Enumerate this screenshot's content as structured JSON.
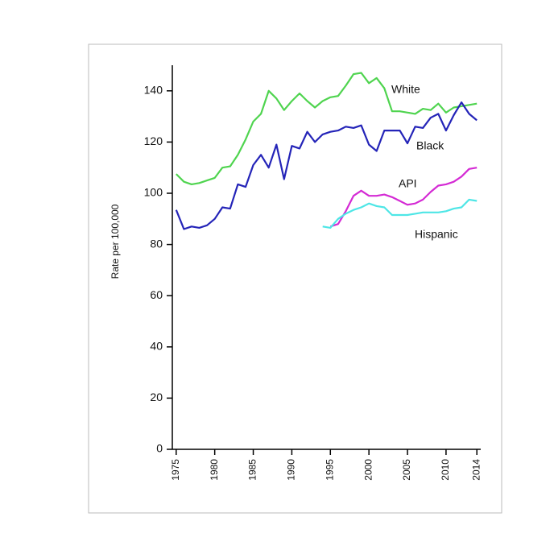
{
  "chart_data": {
    "type": "line",
    "y_label": "Rate per 100,000",
    "x": [
      1975,
      1976,
      1977,
      1978,
      1979,
      1980,
      1981,
      1982,
      1983,
      1984,
      1985,
      1986,
      1987,
      1988,
      1989,
      1990,
      1991,
      1992,
      1993,
      1994,
      1995,
      1996,
      1997,
      1998,
      1999,
      2000,
      2001,
      2002,
      2003,
      2004,
      2005,
      2006,
      2007,
      2008,
      2009,
      2010,
      2011,
      2012,
      2013,
      2014
    ],
    "series": [
      {
        "name": "White",
        "color": "#4fd44f",
        "values": [
          107.5,
          104.5,
          103.5,
          104,
          105,
          106,
          110,
          110.5,
          115,
          121,
          128,
          131,
          140,
          137,
          132.5,
          136,
          139,
          136,
          133.5,
          136,
          137.5,
          138,
          142,
          146.5,
          147,
          143,
          145,
          141,
          132,
          132,
          131.5,
          131,
          133,
          132.5,
          135,
          131.5,
          133.5,
          134,
          134.5,
          135
        ]
      },
      {
        "name": "Black",
        "color": "#2424b8",
        "values": [
          93.5,
          86,
          87,
          86.5,
          87.5,
          90,
          94.5,
          94,
          103.5,
          102.5,
          111,
          115,
          110,
          119,
          105.5,
          118.5,
          117.5,
          124,
          120,
          123,
          124,
          124.5,
          126,
          125.5,
          126.5,
          119,
          116.5,
          124.5,
          124.5,
          124.5,
          119.5,
          126,
          125.5,
          129.5,
          131,
          124.5,
          130.5,
          135.5,
          131,
          128.5
        ]
      },
      {
        "name": "API",
        "color": "#d42ad4",
        "values": [
          null,
          null,
          null,
          null,
          null,
          null,
          null,
          null,
          null,
          null,
          null,
          null,
          null,
          null,
          null,
          null,
          null,
          null,
          null,
          null,
          87,
          88,
          93,
          99,
          101,
          99,
          99,
          99.5,
          98.5,
          97,
          95.5,
          96,
          97.5,
          100.5,
          103,
          103.5,
          104.5,
          106.5,
          109.5,
          110
        ]
      },
      {
        "name": "Hispanic",
        "color": "#4ee6e6",
        "values": [
          null,
          null,
          null,
          null,
          null,
          null,
          null,
          null,
          null,
          null,
          null,
          null,
          null,
          null,
          null,
          null,
          null,
          null,
          null,
          87,
          86.5,
          90,
          92,
          93.5,
          94.5,
          96,
          95,
          94.5,
          91.5,
          91.5,
          91.5,
          92,
          92.5,
          92.5,
          92.5,
          93,
          94,
          94.5,
          97.5,
          97
        ]
      }
    ],
    "xlim": [
      1974.5,
      2014.5
    ],
    "xticks": [
      1975,
      1980,
      1985,
      1990,
      1995,
      2000,
      2005,
      2010,
      2014
    ],
    "ylim": [
      0,
      150
    ],
    "yticks": [
      0,
      20,
      40,
      60,
      80,
      100,
      120,
      140
    ]
  }
}
